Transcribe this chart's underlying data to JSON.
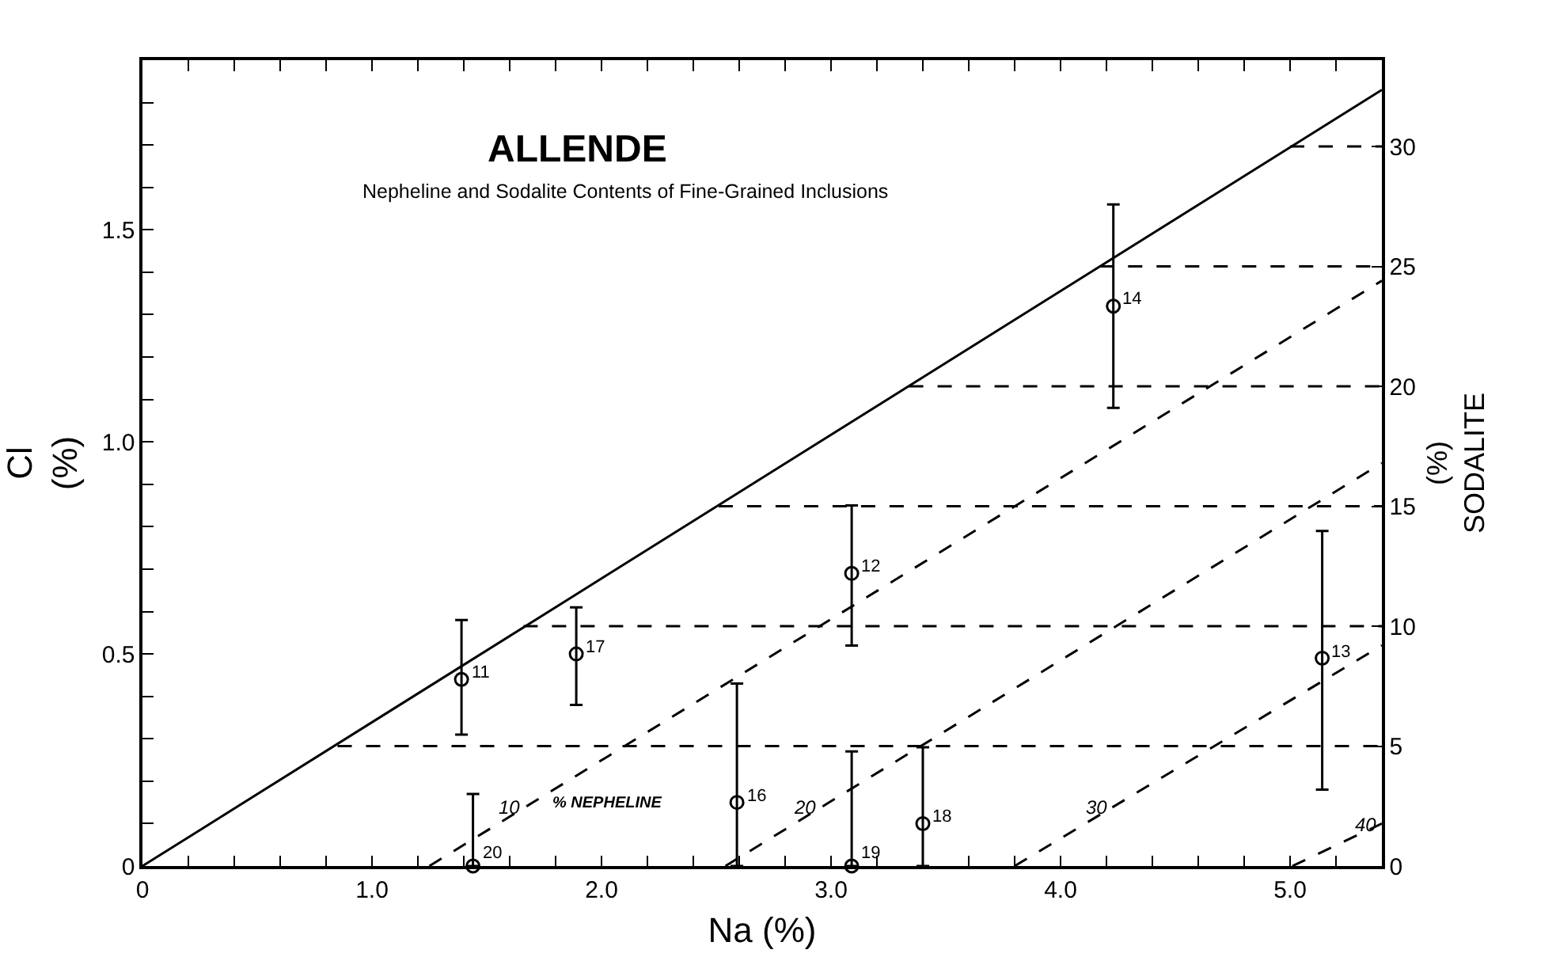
{
  "chart_data": {
    "type": "scatter",
    "title": "ALLENDE",
    "subtitle": "Nepheline and Sodalite Contents of Fine-Grained Inclusions",
    "xlabel": "Na (%)",
    "ylabel": "Cl (%)",
    "y2label": "(%) SODALITE",
    "xlim": [
      0,
      5.4
    ],
    "xticks": [
      0,
      {
        "value": 0.2,
        "label": null
      },
      {
        "value": 0.4,
        "label": null
      },
      {
        "value": 0.6,
        "label": null
      },
      {
        "value": 0.8,
        "label": null
      },
      {
        "value": 1,
        "label": "1.0"
      },
      {
        "value": 1.2,
        "label": null
      },
      {
        "value": 1.4,
        "label": null
      },
      {
        "value": 1.6,
        "label": null
      },
      {
        "value": 1.8,
        "label": null
      },
      {
        "value": 2,
        "label": "2.0"
      },
      {
        "value": 2.2,
        "label": null
      },
      {
        "value": 2.4,
        "label": null
      },
      {
        "value": 2.6,
        "label": null
      },
      {
        "value": 2.8,
        "label": null
      },
      {
        "value": 3,
        "label": "3.0"
      },
      {
        "value": 3.2,
        "label": null
      },
      {
        "value": 3.4,
        "label": null
      },
      {
        "value": 3.6,
        "label": null
      },
      {
        "value": 3.8,
        "label": null
      },
      {
        "value": 4,
        "label": "4.0"
      },
      {
        "value": 4.2,
        "label": null
      },
      {
        "value": 4.4,
        "label": null
      },
      {
        "value": 4.6,
        "label": null
      },
      {
        "value": 4.8,
        "label": null
      },
      {
        "value": 5,
        "label": "5.0"
      },
      {
        "value": 5.2,
        "label": null
      }
    ],
    "ylim": [
      0,
      1.9
    ],
    "yticks": [
      0,
      {
        "value": 0.1,
        "label": null
      },
      {
        "value": 0.2,
        "label": null
      },
      {
        "value": 0.3,
        "label": null
      },
      {
        "value": 0.4,
        "label": null
      },
      0.5,
      {
        "value": 0.6,
        "label": null
      },
      {
        "value": 0.7,
        "label": null
      },
      {
        "value": 0.8,
        "label": null
      },
      {
        "value": 0.9,
        "label": null
      },
      {
        "value": 1,
        "label": "1.0"
      },
      {
        "value": 1.1,
        "label": null
      },
      {
        "value": 1.2,
        "label": null
      },
      {
        "value": 1.3,
        "label": null
      },
      {
        "value": 1.4,
        "label": null
      },
      1.5,
      {
        "value": 1.6,
        "label": null
      },
      {
        "value": 1.7,
        "label": null
      },
      {
        "value": 1.8,
        "label": null
      }
    ],
    "y2lim": [
      0,
      33.6
    ],
    "y2ticks": [
      0,
      5,
      10,
      15,
      20,
      25,
      30
    ],
    "grid": false,
    "marker": "circle",
    "series": [
      {
        "color": "#000000",
        "x": [
          1.39,
          1.89,
          1.44,
          2.59,
          3.09,
          4.23,
          5.14,
          3.09,
          3.4
        ],
        "values": [
          0.44,
          0.5,
          0,
          0.15,
          0.69,
          1.32,
          0.49,
          0,
          0.1
        ],
        "errors": [
          [
            0.31,
            0.58
          ],
          [
            0.38,
            0.61
          ],
          [
            0,
            0.17
          ],
          [
            0,
            0.43
          ],
          [
            0.52,
            0.85
          ],
          [
            1.08,
            1.56
          ],
          [
            0.18,
            0.79
          ],
          [
            0,
            0.27
          ],
          [
            0,
            0.28
          ]
        ]
      },
      {
        "type": "line",
        "color": "#000000",
        "line_style": "solid",
        "marker": "none",
        "x": [
          0,
          5.4
        ],
        "values": [
          0,
          1.83
        ]
      },
      {
        "type": "line",
        "color": "#000000",
        "line_style": "dashed",
        "marker": "none",
        "x": [
          1.25,
          5.4
        ],
        "values": [
          0,
          1.38
        ]
      },
      {
        "type": "line",
        "color": "#000000",
        "line_style": "dashed",
        "marker": "none",
        "x": [
          2.54,
          5.4
        ],
        "values": [
          0,
          0.95
        ]
      },
      {
        "type": "line",
        "color": "#000000",
        "line_style": "dashed",
        "marker": "none",
        "x": [
          3.8,
          5.4
        ],
        "values": [
          0,
          0.52
        ]
      },
      {
        "type": "line",
        "color": "#000000",
        "line_style": "dashed",
        "marker": "none",
        "x": [
          5.01,
          5.4
        ],
        "values": [
          0,
          0.1
        ]
      },
      {
        "type": "line",
        "color": "#000000",
        "line_style": "dashed",
        "marker": "none",
        "axis": "y2",
        "x": [
          0.85,
          5.4
        ],
        "values": [
          5,
          5
        ]
      },
      {
        "type": "line",
        "color": "#000000",
        "line_style": "dashed",
        "marker": "none",
        "axis": "y2",
        "x": [
          1.66,
          5.4
        ],
        "values": [
          10,
          10
        ]
      },
      {
        "type": "line",
        "color": "#000000",
        "line_style": "dashed",
        "marker": "none",
        "axis": "y2",
        "x": [
          2.51,
          5.4
        ],
        "values": [
          15,
          15
        ]
      },
      {
        "type": "line",
        "color": "#000000",
        "line_style": "dashed",
        "marker": "none",
        "axis": "y2",
        "x": [
          3.34,
          5.4
        ],
        "values": [
          20,
          20
        ]
      },
      {
        "type": "line",
        "color": "#000000",
        "line_style": "dashed",
        "marker": "none",
        "axis": "y2",
        "x": [
          4.17,
          5.4
        ],
        "values": [
          25,
          25
        ]
      },
      {
        "type": "line",
        "color": "#000000",
        "line_style": "dashed",
        "marker": "none",
        "axis": "y2",
        "x": [
          5.0,
          5.4
        ],
        "values": [
          30,
          30
        ]
      }
    ],
    "annotations": [
      {
        "text": "11",
        "x": 1.39,
        "y": 0.44
      },
      {
        "text": "17",
        "x": 1.89,
        "y": 0.5
      },
      {
        "text": "20",
        "x": 1.44,
        "y": 0
      },
      {
        "text": "16",
        "x": 2.59,
        "y": 0.15
      },
      {
        "text": "12",
        "x": 3.09,
        "y": 0.69
      },
      {
        "text": "14",
        "x": 4.23,
        "y": 1.32
      },
      {
        "text": "13",
        "x": 5.14,
        "y": 0.49
      },
      {
        "text": "19",
        "x": 3.09,
        "y": 0
      },
      {
        "text": "18",
        "x": 3.4,
        "y": 0.1
      },
      {
        "text": "10",
        "x": 1.64,
        "y": 0.13
      },
      "% NEPHELINE",
      {
        "text": "20",
        "x": 2.93,
        "y": 0.13
      },
      {
        "text": "30",
        "x": 4.2,
        "y": 0.13
      },
      {
        "text": "40",
        "x": 5.37,
        "y": 0.09
      }
    ]
  }
}
